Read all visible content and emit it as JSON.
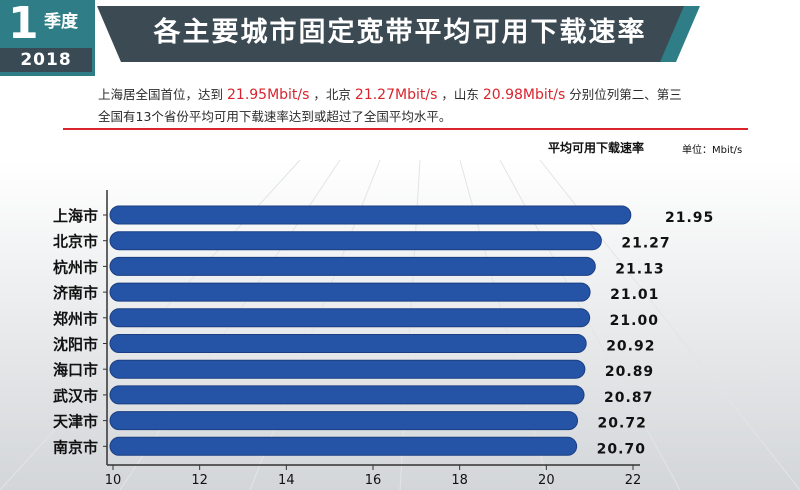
{
  "badge": {
    "number": "1",
    "quarter": "季度",
    "year": "2018"
  },
  "title": "各主要城市固定宽带平均可用下载速率",
  "description": {
    "line1_a": "上海居全国首位，达到",
    "line1_v1": "21.95Mbit/s",
    "line1_b": "，北京",
    "line1_v2": "21.27Mbit/s",
    "line1_c": "，山东",
    "line1_v3": "20.98Mbit/s",
    "line1_d": "分别位列第二、第三",
    "line2": "全国有13个省份平均可用下载速率达到或超过了全国平均水平。"
  },
  "metric_label": "平均可用下载速率",
  "unit_label": "单位：Mbit/s",
  "colors": {
    "bar": "#2554a6",
    "bar_edge": "#1b3f82",
    "accent": "#d9232d",
    "banner": "#3c4a53",
    "teal": "#2f7d86"
  },
  "chart_data": {
    "type": "bar",
    "orientation": "horizontal",
    "categories": [
      "上海市",
      "北京市",
      "杭州市",
      "济南市",
      "郑州市",
      "沈阳市",
      "海口市",
      "武汉市",
      "天津市",
      "南京市"
    ],
    "values": [
      21.95,
      21.27,
      21.13,
      21.01,
      21.0,
      20.92,
      20.89,
      20.87,
      20.72,
      20.7
    ],
    "value_labels": [
      "21.95",
      "21.27",
      "21.13",
      "21.01",
      "21.00",
      "20.92",
      "20.89",
      "20.87",
      "20.72",
      "20.70"
    ],
    "xlim": [
      10,
      22
    ],
    "xticks": [
      "10",
      "12",
      "14",
      "16",
      "18",
      "20",
      "22"
    ],
    "title": "",
    "xlabel": "",
    "ylabel": "",
    "grid": false
  }
}
